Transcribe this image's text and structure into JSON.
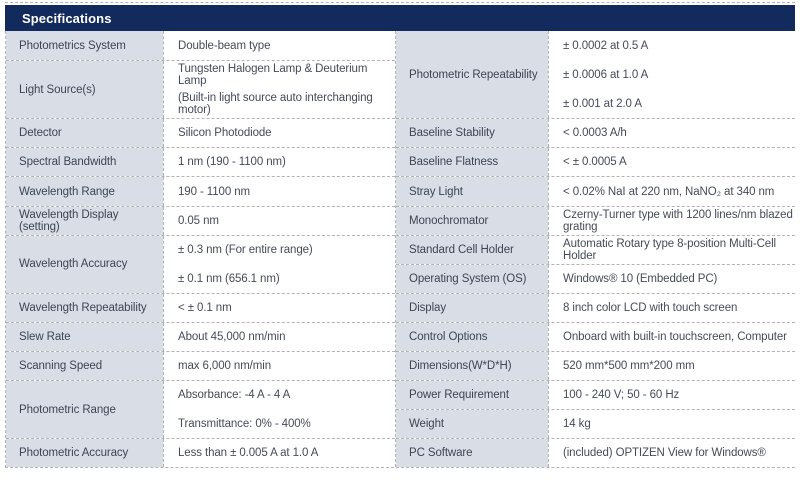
{
  "header": {
    "title": "Specifications"
  },
  "colors": {
    "header_bg": "#122b5c",
    "label_bg": "#d9dde6",
    "border": "#b3b3b3",
    "label_text": "#3e4553",
    "value_text": "#454b57"
  },
  "table": {
    "left": [
      {
        "label": "Photometrics System",
        "span": 1,
        "values": [
          "Double-beam type"
        ]
      },
      {
        "label": "Light Source(s)",
        "span": 2,
        "values": [
          "Tungsten Halogen Lamp & Deuterium Lamp",
          "(Built-in light source auto interchanging motor)"
        ]
      },
      {
        "label": "Detector",
        "span": 1,
        "values": [
          "Silicon Photodiode"
        ]
      },
      {
        "label": "Spectral Bandwidth",
        "span": 1,
        "values": [
          "1 nm (190 - 1100 nm)"
        ]
      },
      {
        "label": "Wavelength Range",
        "span": 1,
        "values": [
          "190 - 1100 nm"
        ]
      },
      {
        "label": "Wavelength Display (setting)",
        "span": 1,
        "values": [
          "0.05 nm"
        ]
      },
      {
        "label": "Wavelength Accuracy",
        "span": 2,
        "values": [
          "± 0.3 nm (For entire range)",
          "± 0.1 nm (656.1 nm)"
        ]
      },
      {
        "label": "Wavelength Repeatability",
        "span": 1,
        "values": [
          "< ± 0.1 nm"
        ]
      },
      {
        "label": "Slew Rate",
        "span": 1,
        "values": [
          "About 45,000 nm/min"
        ]
      },
      {
        "label": "Scanning Speed",
        "span": 1,
        "values": [
          "max 6,000 nm/min"
        ]
      },
      {
        "label": "Photometric Range",
        "span": 2,
        "values": [
          "Absorbance: -4 A - 4 A",
          "Transmittance: 0% - 400%"
        ]
      },
      {
        "label": "Photometric Accuracy",
        "span": 1,
        "values": [
          "Less than ± 0.005 A at 1.0 A"
        ]
      }
    ],
    "right": [
      {
        "label": "Photometric Repeatability",
        "span": 3,
        "values": [
          "± 0.0002 at 0.5 A",
          "± 0.0006 at 1.0 A",
          "± 0.001 at 2.0 A"
        ]
      },
      {
        "label": "Baseline Stability",
        "span": 1,
        "values": [
          "< 0.0003 A/h"
        ]
      },
      {
        "label": "Baseline Flatness",
        "span": 1,
        "values": [
          "< ± 0.0005 A"
        ]
      },
      {
        "label": "Stray Light",
        "span": 1,
        "values": [
          "< 0.02% NaI at 220 nm, NaNO₂ at 340 nm"
        ]
      },
      {
        "label": "Monochromator",
        "span": 1,
        "values": [
          "Czerny-Turner type with 1200 lines/nm blazed grating"
        ]
      },
      {
        "label": "Standard Cell Holder",
        "span": 1,
        "values": [
          "Automatic Rotary type 8-position Multi-Cell Holder"
        ]
      },
      {
        "label": "Operating System (OS)",
        "span": 1,
        "values": [
          "Windows® 10 (Embedded PC)"
        ]
      },
      {
        "label": "Display",
        "span": 1,
        "values": [
          "8 inch color LCD with touch screen"
        ]
      },
      {
        "label": "Control Options",
        "span": 1,
        "values": [
          "Onboard with built-in touchscreen, Computer"
        ]
      },
      {
        "label": "Dimensions(W*D*H)",
        "span": 1,
        "values": [
          "520 mm*500 mm*200 mm"
        ]
      },
      {
        "label": "Power Requirement",
        "span": 1,
        "values": [
          "100 - 240 V; 50 - 60 Hz"
        ]
      },
      {
        "label": "Weight",
        "span": 1,
        "values": [
          "14 kg"
        ]
      },
      {
        "label": "PC Software",
        "span": 1,
        "values": [
          "(included) OPTIZEN View for Windows®"
        ]
      }
    ]
  }
}
